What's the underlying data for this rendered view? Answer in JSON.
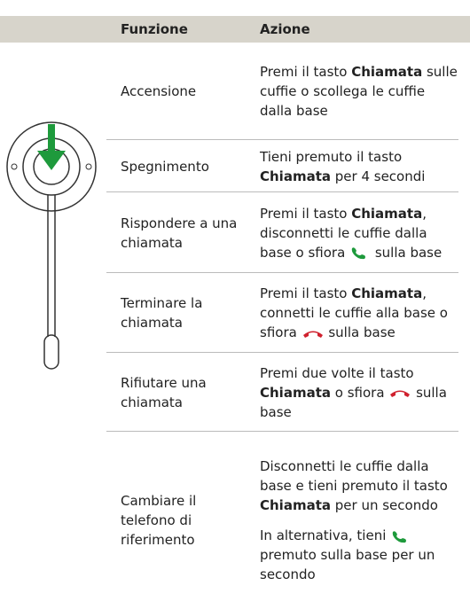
{
  "table": {
    "header": [
      "Funzione",
      "Azione"
    ],
    "rows": [
      {
        "function": "Accensione",
        "action": [
          [
            "Premi il tasto ",
            "Chiamata",
            " sulle cuffie o scollega le cuffie dalla base"
          ]
        ]
      },
      {
        "function": "Spegnimento",
        "action": [
          [
            "Tieni premuto il tasto ",
            "Chiamata",
            " per 4 secondi"
          ]
        ]
      },
      {
        "function": "Rispondere a una chiamata",
        "action": [
          [
            "Premi il tasto ",
            "Chiamata",
            ", disconnetti le cuffie dalla base o sfiora ",
            "sulla base"
          ]
        ]
      },
      {
        "function": "Terminare la chiamata",
        "action": [
          [
            "Premi il tasto ",
            "Chiamata",
            ", connetti le cuffie alla base o sfiora ",
            "sulla base"
          ]
        ]
      },
      {
        "function": "Rifiutare una chiamata",
        "action": [
          [
            "Premi due volte il tasto ",
            "Chiamata",
            " o sfiora ",
            "sulla base"
          ]
        ]
      },
      {
        "function": "Cambiare il telefono di riferimento",
        "action": [
          [
            "Disconnetti le cuffie dalla base e tieni premuto il tasto ",
            "Chiamata",
            " per un secondo"
          ],
          [
            "In alternativa, tieni ",
            "premuto sulla base per un secondo"
          ]
        ]
      }
    ]
  }
}
